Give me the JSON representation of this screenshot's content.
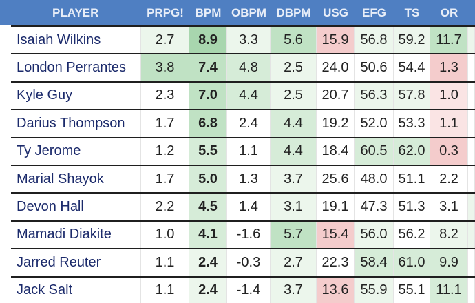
{
  "table": {
    "columns": [
      "PLAYER",
      "PRPG!",
      "BPM",
      "OBPM",
      "DBPM",
      "USG",
      "EFG",
      "TS",
      "OR"
    ],
    "rows": [
      [
        "Isaiah Wilkins",
        "2.7",
        "8.9",
        "3.3",
        "5.6",
        "15.9",
        "56.8",
        "59.2",
        "11.7"
      ],
      [
        "London Perrantes",
        "3.8",
        "7.4",
        "4.8",
        "2.5",
        "24.0",
        "50.6",
        "54.4",
        "1.3"
      ],
      [
        "Kyle Guy",
        "2.3",
        "7.0",
        "4.4",
        "2.5",
        "20.7",
        "56.3",
        "57.8",
        "1.0"
      ],
      [
        "Darius Thompson",
        "1.7",
        "6.8",
        "2.4",
        "4.4",
        "19.2",
        "52.0",
        "53.3",
        "1.1"
      ],
      [
        "Ty Jerome",
        "1.2",
        "5.5",
        "1.1",
        "4.4",
        "18.4",
        "60.5",
        "62.0",
        "0.3"
      ],
      [
        "Marial Shayok",
        "1.7",
        "5.0",
        "1.3",
        "3.7",
        "25.6",
        "48.0",
        "51.1",
        "2.2"
      ],
      [
        "Devon Hall",
        "2.2",
        "4.5",
        "1.4",
        "3.1",
        "19.1",
        "47.3",
        "51.3",
        "3.1"
      ],
      [
        "Mamadi Diakite",
        "1.0",
        "4.1",
        "-1.6",
        "5.7",
        "15.4",
        "56.0",
        "56.2",
        "8.2"
      ],
      [
        "Jarred Reuter",
        "1.1",
        "2.4",
        "-0.3",
        "2.7",
        "22.3",
        "58.4",
        "61.0",
        "9.9"
      ],
      [
        "Jack Salt",
        "1.1",
        "2.4",
        "-1.4",
        "3.7",
        "13.6",
        "55.9",
        "55.1",
        "11.1"
      ]
    ]
  }
}
